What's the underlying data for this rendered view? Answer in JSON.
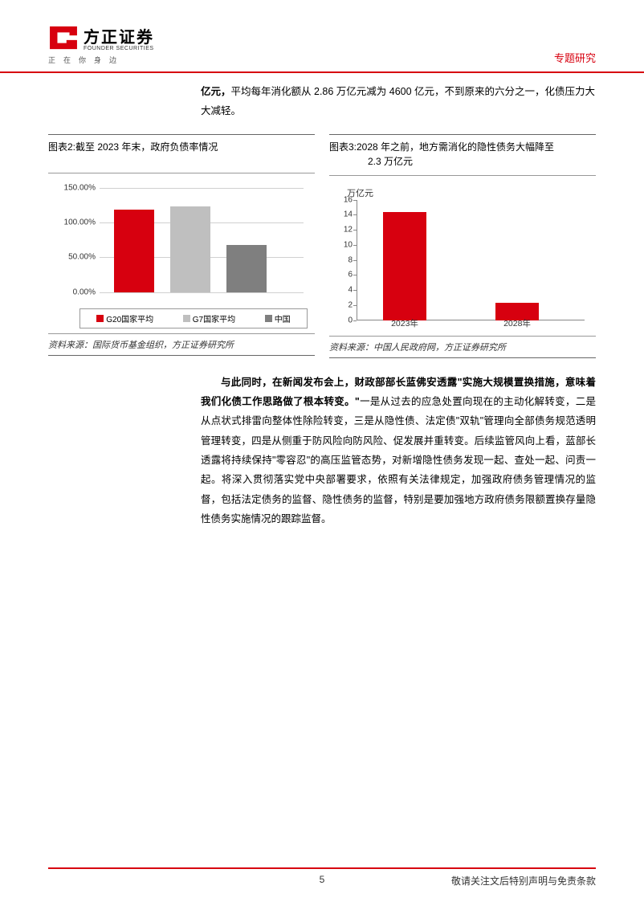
{
  "header": {
    "logo_cn": "方正证券",
    "logo_en": "FOUNDER SECURITIES",
    "tagline": "正在你身边",
    "category": "专题研究",
    "logo_color": "#d7000f"
  },
  "intro": {
    "bold_lead": "亿元，",
    "rest": "平均每年消化额从 2.86 万亿元减为 4600 亿元，不到原来的六分之一，化债压力大大减轻。"
  },
  "chart2": {
    "title": "图表2:截至 2023 年末，政府负债率情况",
    "type": "bar",
    "categories": [
      "G20国家平均",
      "G7国家平均",
      "中国"
    ],
    "values": [
      118,
      123,
      67
    ],
    "bar_colors": [
      "#d7000f",
      "#bfbfbf",
      "#7f7f7f"
    ],
    "ylim": [
      0,
      150
    ],
    "yticks": [
      0,
      50,
      100,
      150
    ],
    "ytick_labels": [
      "0.00%",
      "50.00%",
      "100.00%",
      "150.00%"
    ],
    "legend_items": [
      {
        "label": "G20国家平均",
        "color": "#d7000f"
      },
      {
        "label": "G7国家平均",
        "color": "#bfbfbf"
      },
      {
        "label": "中国",
        "color": "#7f7f7f"
      }
    ],
    "background": "#ffffff",
    "grid_color": "#d0d0d0",
    "font_size": 10,
    "source": "资料来源：国际货币基金组织，方正证券研究所"
  },
  "chart3": {
    "title_line1": "图表3:2028 年之前，地方需消化的隐性债务大幅降至",
    "title_line2": "2.3 万亿元",
    "type": "bar",
    "y_unit": "万亿元",
    "categories": [
      "2023年",
      "2028年"
    ],
    "values": [
      14.3,
      2.3
    ],
    "bar_colors": [
      "#d7000f",
      "#d7000f"
    ],
    "ylim": [
      0,
      16
    ],
    "yticks": [
      0,
      2,
      4,
      6,
      8,
      10,
      12,
      14,
      16
    ],
    "background": "#ffffff",
    "grid_color": "#d0d0d0",
    "font_size": 10,
    "source": "资料来源：中国人民政府网，方正证券研究所"
  },
  "body": {
    "bold1": "与此同时，在新闻发布会上，财政部部长蓝佛安透露\"实施大规模置换措施，意味着我们化债工作思路做了根本转变。\"",
    "rest": "一是从过去的应急处置向现在的主动化解转变，二是从点状式排雷向整体性除险转变，三是从隐性债、法定债\"双轨\"管理向全部债务规范透明管理转变，四是从侧重于防风险向防风险、促发展并重转变。后续监管风向上看，蓝部长透露将持续保持\"零容忍\"的高压监管态势，对新增隐性债务发现一起、查处一起、问责一起。将深入贯彻落实党中央部署要求，依照有关法律规定，加强政府债务管理情况的监督，包括法定债务的监督、隐性债务的监督，特别是要加强地方政府债务限额置换存量隐性债务实施情况的跟踪监督。"
  },
  "footer": {
    "page": "5",
    "disclaimer": "敬请关注文后特别声明与免责条款"
  }
}
